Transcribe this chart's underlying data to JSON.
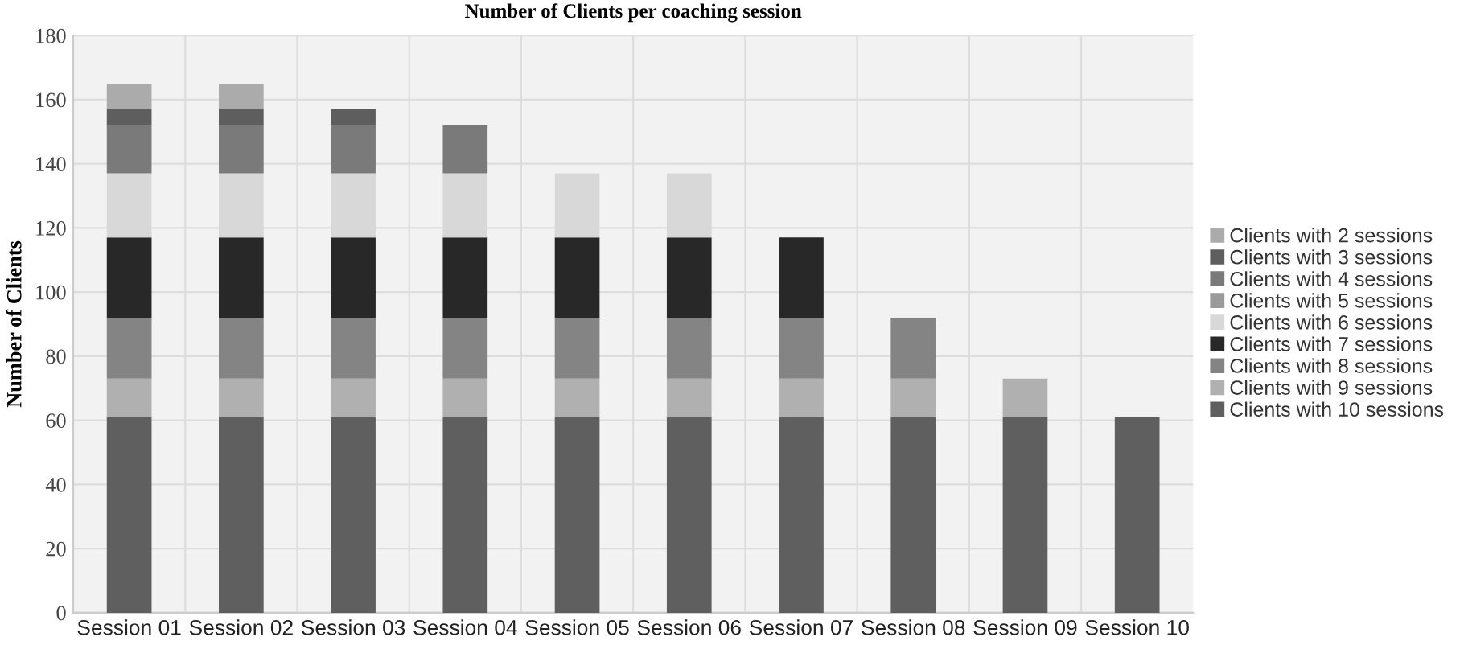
{
  "chart_data": {
    "type": "bar",
    "stacked": true,
    "title": "Number of Clients per coaching session",
    "ylabel": "Number of Clients",
    "categories": [
      "Session 01",
      "Session 02",
      "Session 03",
      "Session 04",
      "Session 05",
      "Session 06",
      "Session 07",
      "Session 08",
      "Session 09",
      "Session 10"
    ],
    "series": [
      {
        "name": "Clients with 10 sessions",
        "color": "#5f5f5f",
        "values": [
          61,
          61,
          61,
          61,
          61,
          61,
          61,
          61,
          61,
          61
        ]
      },
      {
        "name": "Clients with 9 sessions",
        "color": "#b0b0b0",
        "values": [
          12,
          12,
          12,
          12,
          12,
          12,
          12,
          12,
          12,
          null
        ]
      },
      {
        "name": "Clients with 8 sessions",
        "color": "#848484",
        "values": [
          19,
          19,
          19,
          19,
          19,
          19,
          19,
          19,
          null,
          null
        ]
      },
      {
        "name": "Clients with 7 sessions",
        "color": "#282828",
        "values": [
          25,
          25,
          25,
          25,
          25,
          25,
          25,
          null,
          null,
          null
        ]
      },
      {
        "name": "Clients with 6 sessions",
        "color": "#d8d8d8",
        "values": [
          20,
          20,
          20,
          20,
          20,
          20,
          null,
          null,
          null,
          null
        ]
      },
      {
        "name": "Clients with 5 sessions",
        "color": "#9a9a9a",
        "values": [
          0,
          0,
          0,
          0,
          0,
          null,
          null,
          null,
          null,
          null
        ]
      },
      {
        "name": "Clients with 4 sessions",
        "color": "#7a7a7a",
        "values": [
          15,
          15,
          15,
          15,
          null,
          null,
          null,
          null,
          null,
          null
        ]
      },
      {
        "name": "Clients with 3 sessions",
        "color": "#5e5e5e",
        "values": [
          5,
          5,
          5,
          null,
          null,
          null,
          null,
          null,
          null,
          null
        ]
      },
      {
        "name": "Clients with 2 sessions",
        "color": "#ababab",
        "values": [
          8,
          8,
          null,
          null,
          null,
          null,
          null,
          null,
          null,
          null
        ]
      }
    ],
    "ylim": [
      0,
      180
    ],
    "yticks": [
      0,
      20,
      40,
      60,
      80,
      100,
      120,
      140,
      160,
      180
    ],
    "grid": true,
    "legend": "right"
  }
}
